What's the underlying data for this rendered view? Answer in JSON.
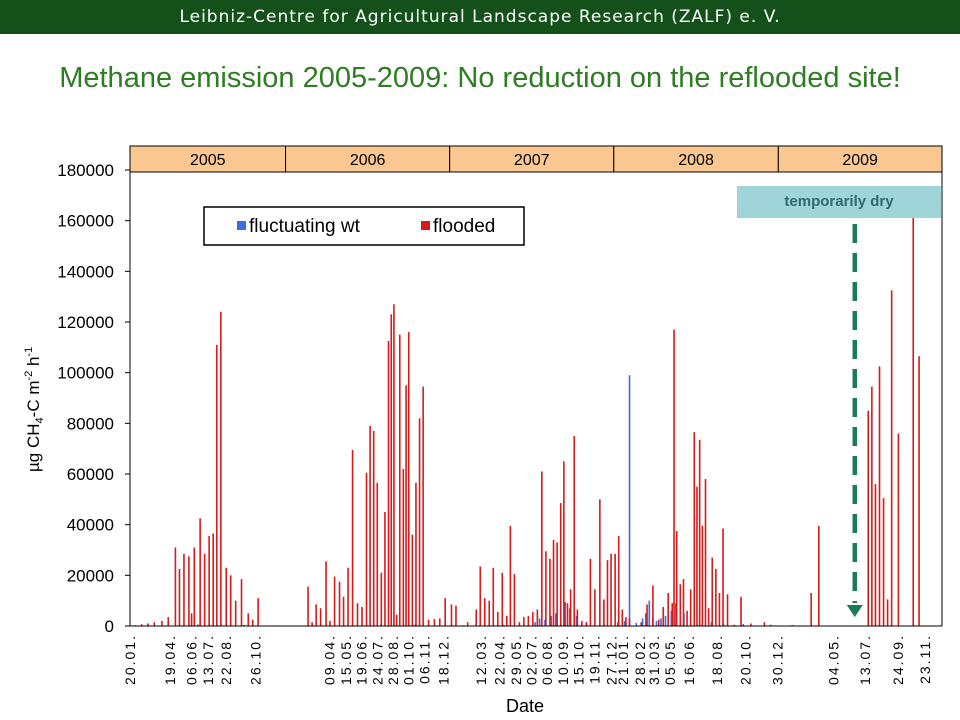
{
  "header": {
    "org_text": "Leibniz-Centre for Agricultural Landscape Research (ZALF) e. V.",
    "bar_color": "#14501a"
  },
  "slide": {
    "title": "Methane emission 2005-2009: No reduction on the reflooded site!",
    "title_color": "#2e7d22"
  },
  "annotation": {
    "text": "temporarily dry",
    "box_color": "#9fd4d8",
    "arrow_color": "#1a7a5c",
    "arrow_style": "dashed, pointing down"
  },
  "chart_data": {
    "type": "bar",
    "title": "",
    "xlabel": "Date",
    "ylabel": "µg CH4-C m-2 h-1",
    "ylabel_parts": {
      "pre": "µg CH",
      "sub1": "4",
      "mid": "-C m",
      "sup1": "-2",
      "mid2": " h",
      "sup2": "-1"
    },
    "ylim": [
      0,
      180000
    ],
    "yticks": [
      0,
      20000,
      40000,
      60000,
      80000,
      100000,
      120000,
      140000,
      160000,
      180000
    ],
    "grid": false,
    "legend_position": "top-left inside plot",
    "years": [
      "2005",
      "2006",
      "2007",
      "2008",
      "2009"
    ],
    "year_boundaries": [
      "2005-01-20",
      "2006-01-01",
      "2007-01-01",
      "2008-01-01",
      "2009-01-01",
      "2009-12-31"
    ],
    "year_band_color": "#f9c78f",
    "x_range": [
      "2005-01-20",
      "2009-12-31"
    ],
    "x_tick_labels": [
      {
        "label": "20.01.",
        "date": "2005-01-20"
      },
      {
        "label": "19.04.",
        "date": "2005-04-19"
      },
      {
        "label": "06.06.",
        "date": "2005-06-06"
      },
      {
        "label": "13.07.",
        "date": "2005-07-13"
      },
      {
        "label": "22.08.",
        "date": "2005-08-22"
      },
      {
        "label": "26.10.",
        "date": "2005-10-26"
      },
      {
        "label": "09.04.",
        "date": "2006-04-09"
      },
      {
        "label": "15.05.",
        "date": "2006-05-15"
      },
      {
        "label": "19.06.",
        "date": "2006-06-19"
      },
      {
        "label": "24.07.",
        "date": "2006-07-24"
      },
      {
        "label": "28.08.",
        "date": "2006-08-28"
      },
      {
        "label": "01.10.",
        "date": "2006-10-01"
      },
      {
        "label": "06.11.",
        "date": "2006-11-06"
      },
      {
        "label": "18.12.",
        "date": "2006-12-18"
      },
      {
        "label": "12.03.",
        "date": "2007-03-12"
      },
      {
        "label": "22.04.",
        "date": "2007-04-22"
      },
      {
        "label": "29.05.",
        "date": "2007-05-29"
      },
      {
        "label": "02.07.",
        "date": "2007-07-02"
      },
      {
        "label": "06.08.",
        "date": "2007-08-06"
      },
      {
        "label": "10.09.",
        "date": "2007-09-10"
      },
      {
        "label": "15.10.",
        "date": "2007-10-15"
      },
      {
        "label": "19.11.",
        "date": "2007-11-19"
      },
      {
        "label": "27.12.",
        "date": "2007-12-27"
      },
      {
        "label": "21.01.",
        "date": "2008-01-21"
      },
      {
        "label": "28.02.",
        "date": "2008-02-28"
      },
      {
        "label": "31.03.",
        "date": "2008-03-31"
      },
      {
        "label": "05.05.",
        "date": "2008-05-05"
      },
      {
        "label": "16.06.",
        "date": "2008-06-16"
      },
      {
        "label": "18.08.",
        "date": "2008-08-18"
      },
      {
        "label": "20.10.",
        "date": "2008-10-20"
      },
      {
        "label": "30.12.",
        "date": "2008-12-30"
      },
      {
        "label": "04.05.",
        "date": "2009-05-04"
      },
      {
        "label": "13.07.",
        "date": "2009-07-13"
      },
      {
        "label": "24.09.",
        "date": "2009-09-24"
      },
      {
        "label": "23.11.",
        "date": "2009-11-23"
      }
    ],
    "temporarily_dry_date": "2009-06-20",
    "series": [
      {
        "name": "fluctuating wt",
        "color": "#3b6ce0",
        "points": [
          [
            "2005-02-01",
            300
          ],
          [
            "2005-03-01",
            500
          ],
          [
            "2005-05-10",
            400
          ],
          [
            "2005-06-20",
            600
          ],
          [
            "2005-08-01",
            500
          ],
          [
            "2005-10-01",
            400
          ],
          [
            "2006-05-01",
            300
          ],
          [
            "2006-08-01",
            600
          ],
          [
            "2006-10-15",
            500
          ],
          [
            "2007-02-01",
            300
          ],
          [
            "2007-05-01",
            500
          ],
          [
            "2007-07-10",
            1500
          ],
          [
            "2007-07-20",
            3000
          ],
          [
            "2007-08-01",
            2500
          ],
          [
            "2007-08-15",
            4000
          ],
          [
            "2007-08-25",
            5000
          ],
          [
            "2007-09-05",
            6000
          ],
          [
            "2007-09-15",
            9500
          ],
          [
            "2007-09-25",
            7000
          ],
          [
            "2007-10-10",
            4000
          ],
          [
            "2007-11-01",
            1500
          ],
          [
            "2007-12-10",
            1000
          ],
          [
            "2008-01-10",
            1500
          ],
          [
            "2008-01-25",
            2000
          ],
          [
            "2008-02-05",
            99000
          ],
          [
            "2008-02-20",
            1200
          ],
          [
            "2008-03-05",
            3000
          ],
          [
            "2008-03-12",
            5000
          ],
          [
            "2008-03-20",
            10000
          ],
          [
            "2008-03-28",
            3000
          ],
          [
            "2008-04-05",
            2000
          ],
          [
            "2008-04-15",
            3000
          ],
          [
            "2008-04-25",
            4000
          ],
          [
            "2008-05-08",
            6000
          ],
          [
            "2008-05-18",
            9000
          ],
          [
            "2008-05-28",
            6000
          ],
          [
            "2008-06-05",
            5000
          ],
          [
            "2008-06-20",
            3000
          ],
          [
            "2008-07-10",
            2000
          ],
          [
            "2008-08-05",
            1500
          ],
          [
            "2008-09-01",
            1000
          ],
          [
            "2008-10-15",
            800
          ],
          [
            "2008-12-15",
            500
          ],
          [
            "2009-02-01",
            400
          ]
        ]
      },
      {
        "name": "flooded",
        "color": "#d71a1a",
        "points": [
          [
            "2005-02-01",
            300
          ],
          [
            "2005-02-15",
            700
          ],
          [
            "2005-03-01",
            1000
          ],
          [
            "2005-03-15",
            1500
          ],
          [
            "2005-04-01",
            2000
          ],
          [
            "2005-04-15",
            3500
          ],
          [
            "2005-05-01",
            31000
          ],
          [
            "2005-05-10",
            22500
          ],
          [
            "2005-05-20",
            28500
          ],
          [
            "2005-05-31",
            27500
          ],
          [
            "2005-06-06",
            5000
          ],
          [
            "2005-06-12",
            31000
          ],
          [
            "2005-06-25",
            42500
          ],
          [
            "2005-07-05",
            28500
          ],
          [
            "2005-07-15",
            35500
          ],
          [
            "2005-07-24",
            36500
          ],
          [
            "2005-08-01",
            111000
          ],
          [
            "2005-08-10",
            124000
          ],
          [
            "2005-08-22",
            23000
          ],
          [
            "2005-09-01",
            20000
          ],
          [
            "2005-09-12",
            10000
          ],
          [
            "2005-09-25",
            18500
          ],
          [
            "2005-10-10",
            5000
          ],
          [
            "2005-10-20",
            2500
          ],
          [
            "2005-11-01",
            11000
          ],
          [
            "2006-02-20",
            15500
          ],
          [
            "2006-03-01",
            1500
          ],
          [
            "2006-03-10",
            8500
          ],
          [
            "2006-03-20",
            7000
          ],
          [
            "2006-04-01",
            25500
          ],
          [
            "2006-04-10",
            2000
          ],
          [
            "2006-04-20",
            19500
          ],
          [
            "2006-05-01",
            17500
          ],
          [
            "2006-05-10",
            11500
          ],
          [
            "2006-05-20",
            23000
          ],
          [
            "2006-05-30",
            69500
          ],
          [
            "2006-06-10",
            9000
          ],
          [
            "2006-06-20",
            7500
          ],
          [
            "2006-06-30",
            60500
          ],
          [
            "2006-07-08",
            79000
          ],
          [
            "2006-07-16",
            77000
          ],
          [
            "2006-07-24",
            56500
          ],
          [
            "2006-08-02",
            21000
          ],
          [
            "2006-08-10",
            45000
          ],
          [
            "2006-08-18",
            112500
          ],
          [
            "2006-08-24",
            123000
          ],
          [
            "2006-08-30",
            127000
          ],
          [
            "2006-09-05",
            4500
          ],
          [
            "2006-09-12",
            115000
          ],
          [
            "2006-09-20",
            62000
          ],
          [
            "2006-09-26",
            95000
          ],
          [
            "2006-10-02",
            116000
          ],
          [
            "2006-10-10",
            36000
          ],
          [
            "2006-10-18",
            56500
          ],
          [
            "2006-10-26",
            82000
          ],
          [
            "2006-11-03",
            94500
          ],
          [
            "2006-11-15",
            2500
          ],
          [
            "2006-11-28",
            2800
          ],
          [
            "2006-12-10",
            3000
          ],
          [
            "2006-12-22",
            11000
          ],
          [
            "2007-01-05",
            8500
          ],
          [
            "2007-01-15",
            8000
          ],
          [
            "2007-02-10",
            1500
          ],
          [
            "2007-03-01",
            6500
          ],
          [
            "2007-03-10",
            23500
          ],
          [
            "2007-03-20",
            11000
          ],
          [
            "2007-03-30",
            10000
          ],
          [
            "2007-04-08",
            23000
          ],
          [
            "2007-04-18",
            5500
          ],
          [
            "2007-04-28",
            21000
          ],
          [
            "2007-05-08",
            4000
          ],
          [
            "2007-05-16",
            39500
          ],
          [
            "2007-05-25",
            20500
          ],
          [
            "2007-06-05",
            1500
          ],
          [
            "2007-06-15",
            3500
          ],
          [
            "2007-06-25",
            4000
          ],
          [
            "2007-07-05",
            5500
          ],
          [
            "2007-07-15",
            6500
          ],
          [
            "2007-07-25",
            61000
          ],
          [
            "2007-08-03",
            29500
          ],
          [
            "2007-08-12",
            26500
          ],
          [
            "2007-08-20",
            34000
          ],
          [
            "2007-08-28",
            33000
          ],
          [
            "2007-09-05",
            48500
          ],
          [
            "2007-09-12",
            65000
          ],
          [
            "2007-09-20",
            9000
          ],
          [
            "2007-09-27",
            14500
          ],
          [
            "2007-10-05",
            75000
          ],
          [
            "2007-10-12",
            6500
          ],
          [
            "2007-10-22",
            2000
          ],
          [
            "2007-11-01",
            1500
          ],
          [
            "2007-11-10",
            26500
          ],
          [
            "2007-11-20",
            14500
          ],
          [
            "2007-12-01",
            50000
          ],
          [
            "2007-12-10",
            10500
          ],
          [
            "2007-12-18",
            26000
          ],
          [
            "2007-12-26",
            28500
          ],
          [
            "2008-01-04",
            28500
          ],
          [
            "2008-01-12",
            35500
          ],
          [
            "2008-01-20",
            6500
          ],
          [
            "2008-01-28",
            3500
          ],
          [
            "2008-02-05",
            3000
          ],
          [
            "2008-03-02",
            1500
          ],
          [
            "2008-03-15",
            8500
          ],
          [
            "2008-03-28",
            16000
          ],
          [
            "2008-04-10",
            2500
          ],
          [
            "2008-04-20",
            7500
          ],
          [
            "2008-05-01",
            13000
          ],
          [
            "2008-05-10",
            9000
          ],
          [
            "2008-05-14",
            117000
          ],
          [
            "2008-05-20",
            37500
          ],
          [
            "2008-05-28",
            16500
          ],
          [
            "2008-06-04",
            18500
          ],
          [
            "2008-06-12",
            6000
          ],
          [
            "2008-06-20",
            14500
          ],
          [
            "2008-06-28",
            76500
          ],
          [
            "2008-07-04",
            55000
          ],
          [
            "2008-07-10",
            73500
          ],
          [
            "2008-07-16",
            39500
          ],
          [
            "2008-07-23",
            58000
          ],
          [
            "2008-07-30",
            7000
          ],
          [
            "2008-08-07",
            27000
          ],
          [
            "2008-08-15",
            22500
          ],
          [
            "2008-08-23",
            13000
          ],
          [
            "2008-08-31",
            38500
          ],
          [
            "2008-09-10",
            12500
          ],
          [
            "2008-09-25",
            500
          ],
          [
            "2008-10-10",
            11500
          ],
          [
            "2008-11-01",
            1000
          ],
          [
            "2008-12-01",
            1500
          ],
          [
            "2009-03-15",
            13000
          ],
          [
            "2009-04-01",
            39500
          ],
          [
            "2009-07-20",
            85000
          ],
          [
            "2009-07-28",
            94500
          ],
          [
            "2009-08-05",
            56000
          ],
          [
            "2009-08-14",
            102500
          ],
          [
            "2009-08-23",
            50500
          ],
          [
            "2009-09-01",
            10500
          ],
          [
            "2009-09-10",
            132500
          ],
          [
            "2009-09-25",
            76000
          ],
          [
            "2009-10-28",
            170500
          ],
          [
            "2009-11-10",
            106500
          ]
        ]
      }
    ]
  }
}
